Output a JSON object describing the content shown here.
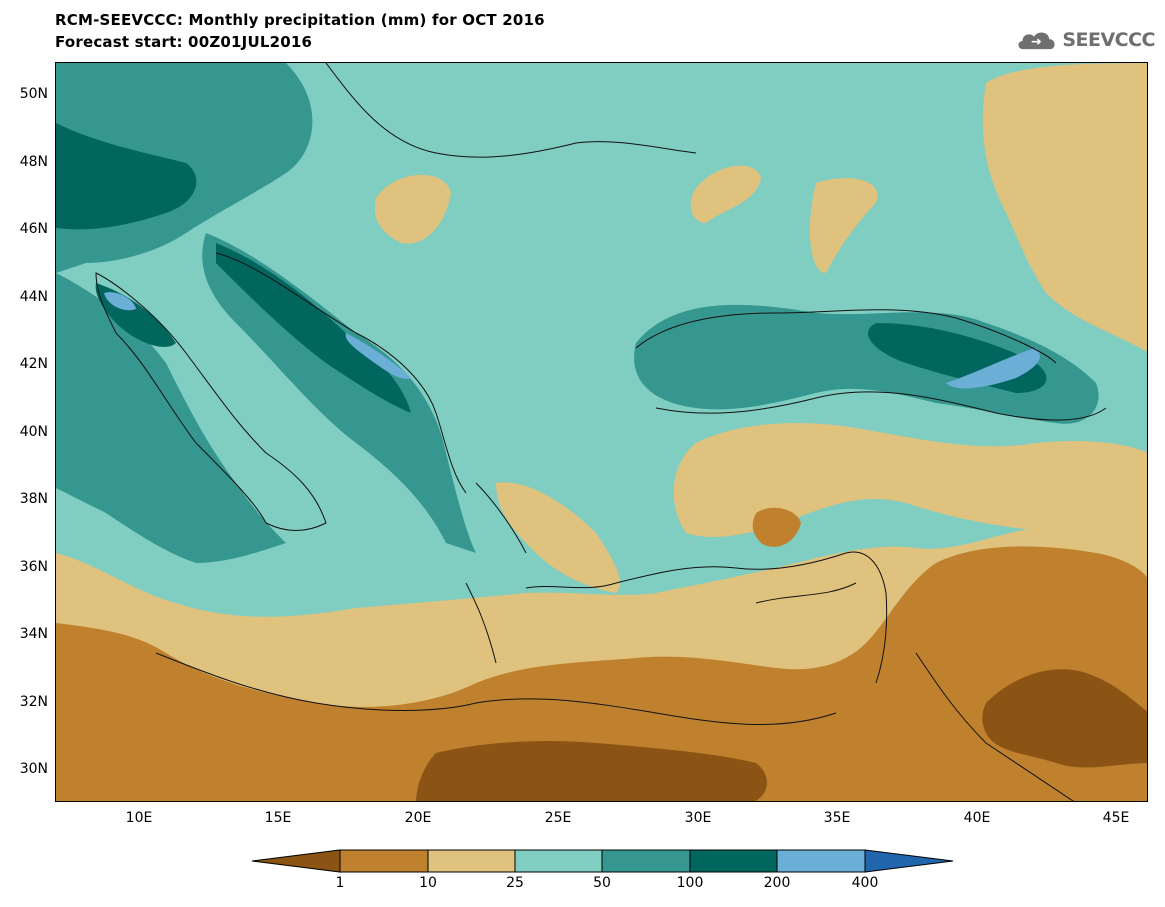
{
  "header": {
    "title": "RCM-SEEVCCC: Monthly precipitation (mm) for OCT 2016",
    "subtitle": "Forecast start: 00Z01JUL2016"
  },
  "logo": {
    "text": "SEEVCCC",
    "icon": "cloud-icon",
    "color": "#6f6f6f"
  },
  "map": {
    "lat_labels": [
      "50N",
      "48N",
      "46N",
      "44N",
      "42N",
      "40N",
      "38N",
      "36N",
      "34N",
      "32N",
      "30N"
    ],
    "lon_labels": [
      "10E",
      "15E",
      "20E",
      "25E",
      "30E",
      "35E",
      "40E",
      "45E"
    ]
  },
  "colorbar": {
    "labels": [
      "1",
      "10",
      "25",
      "50",
      "100",
      "200",
      "400"
    ],
    "colors": [
      "#8c5414",
      "#bf812d",
      "#dfc27d",
      "#80cdc1",
      "#35978f",
      "#01665e",
      "#6baed6",
      "#2166ac"
    ]
  }
}
